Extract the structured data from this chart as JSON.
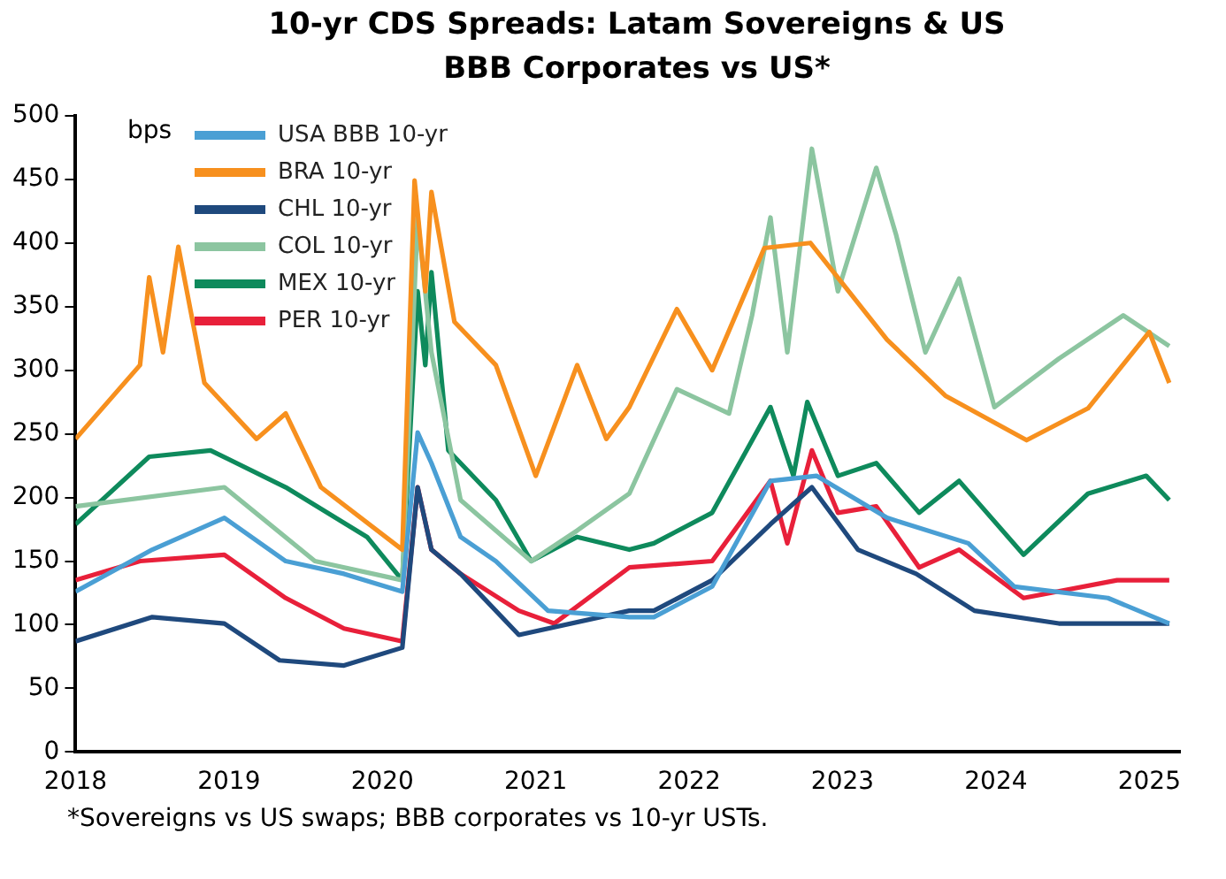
{
  "chart_data": {
    "type": "line",
    "title": "10-yr CDS Spreads: Latam Sovereigns & US BBB Corporates vs US*",
    "ylabel": "bps",
    "annotations": [
      "*Sovereigns vs US swaps; BBB corporates  vs 10-yr USTs."
    ],
    "xlim": [
      2018,
      2025.2
    ],
    "xticks": [
      2018,
      2019,
      2020,
      2021,
      2022,
      2023,
      2024,
      2025
    ],
    "ylim": [
      0,
      500
    ],
    "yticks": [
      0,
      50,
      100,
      150,
      200,
      250,
      300,
      350,
      400,
      450,
      500
    ],
    "grid": false,
    "legend": "top left",
    "marker": "none",
    "line_style": "solid",
    "series": [
      {
        "name": "USA BBB 10-yr",
        "color": "#4a9fd4",
        "x": [
          2018,
          2018.5,
          2018.97,
          2019.37,
          2019.75,
          2020.13,
          2020.23,
          2020.32,
          2020.51,
          2020.74,
          2021.08,
          2021.61,
          2021.77,
          2022.15,
          2022.53,
          2022.83,
          2023.29,
          2023.82,
          2024.12,
          2024.73,
          2025.13
        ],
        "values": [
          126,
          159,
          184,
          150,
          140,
          126,
          251,
          227,
          169,
          150,
          111,
          106,
          106,
          130,
          213,
          217,
          184,
          164,
          130,
          121,
          101
        ]
      },
      {
        "name": "BRA 10-yr",
        "color": "#f7901e",
        "x": [
          2018,
          2018.42,
          2018.48,
          2018.57,
          2018.67,
          2018.84,
          2019.18,
          2019.37,
          2019.6,
          2020.13,
          2020.21,
          2020.28,
          2020.32,
          2020.47,
          2020.74,
          2021,
          2021.27,
          2021.46,
          2021.61,
          2021.92,
          2022.15,
          2022.49,
          2022.79,
          2023.29,
          2023.67,
          2024.2,
          2024.6,
          2025,
          2025.13
        ],
        "values": [
          246,
          304,
          373,
          314,
          397,
          290,
          246,
          266,
          208,
          159,
          449,
          362,
          440,
          338,
          304,
          217,
          304,
          246,
          271,
          348,
          300,
          396,
          400,
          324,
          280,
          245,
          270,
          330,
          290
        ]
      },
      {
        "name": "CHL 10-yr",
        "color": "#1f497d",
        "x": [
          2018,
          2018.5,
          2018.97,
          2019.33,
          2019.75,
          2020.13,
          2020.23,
          2020.32,
          2020.51,
          2020.89,
          2021.61,
          2021.77,
          2022.15,
          2022.53,
          2022.8,
          2023.1,
          2023.48,
          2023.86,
          2024.41,
          2025.13
        ],
        "values": [
          87,
          106,
          101,
          72,
          68,
          82,
          208,
          159,
          140,
          92,
          111,
          111,
          135,
          179,
          208,
          159,
          140,
          111,
          101,
          101
        ]
      },
      {
        "name": "COL 10-yr",
        "color": "#8cc5a0",
        "x": [
          2018,
          2018.97,
          2019.56,
          2020.13,
          2020.23,
          2020.32,
          2020.51,
          2020.97,
          2021.27,
          2021.61,
          2021.92,
          2022.26,
          2022.41,
          2022.53,
          2022.64,
          2022.8,
          2022.97,
          2023.22,
          2023.35,
          2023.54,
          2023.76,
          2023.99,
          2024.41,
          2024.83,
          2025.13
        ],
        "values": [
          193,
          208,
          150,
          135,
          420,
          314,
          198,
          150,
          174,
          203,
          285,
          266,
          343,
          420,
          314,
          474,
          362,
          459,
          406,
          314,
          372,
          271,
          309,
          343,
          319
        ]
      },
      {
        "name": "MEX 10-yr",
        "color": "#0e8a5c",
        "x": [
          2018,
          2018.48,
          2018.88,
          2019.37,
          2019.9,
          2020.13,
          2020.23,
          2020.28,
          2020.32,
          2020.43,
          2020.74,
          2020.97,
          2021.27,
          2021.61,
          2021.77,
          2022.15,
          2022.53,
          2022.68,
          2022.77,
          2022.97,
          2023.22,
          2023.5,
          2023.76,
          2024.18,
          2024.6,
          2024.98,
          2025.13
        ],
        "values": [
          179,
          232,
          237,
          208,
          169,
          135,
          362,
          304,
          377,
          237,
          198,
          150,
          169,
          159,
          164,
          188,
          271,
          217,
          275,
          217,
          227,
          188,
          213,
          155,
          203,
          217,
          198
        ]
      },
      {
        "name": "PER 10-yr",
        "color": "#e8203a",
        "x": [
          2018,
          2018.42,
          2018.97,
          2019.37,
          2019.75,
          2020.13,
          2020.23,
          2020.32,
          2020.51,
          2020.89,
          2021.12,
          2021.61,
          2022.15,
          2022.53,
          2022.64,
          2022.8,
          2022.97,
          2023.22,
          2023.5,
          2023.76,
          2024.18,
          2024.79,
          2025.13
        ],
        "values": [
          135,
          150,
          155,
          121,
          97,
          87,
          208,
          159,
          140,
          111,
          101,
          145,
          150,
          213,
          164,
          237,
          188,
          193,
          145,
          159,
          121,
          135,
          135
        ]
      }
    ]
  }
}
